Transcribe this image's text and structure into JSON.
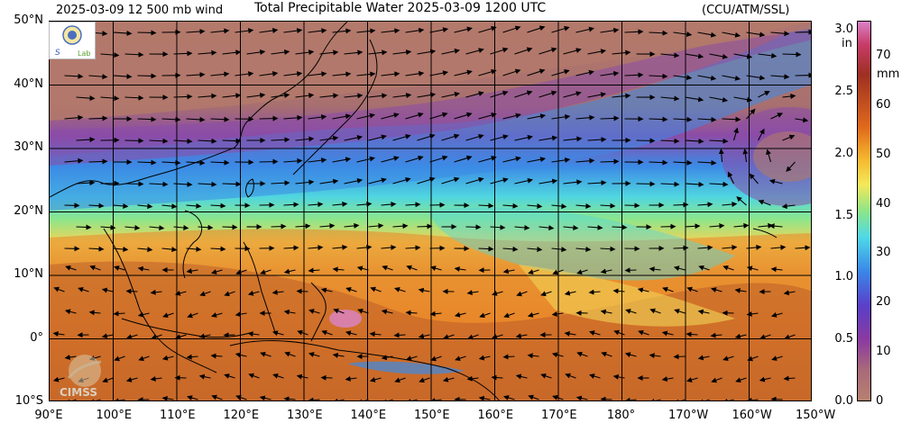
{
  "header": {
    "wind_label": "2025-03-09 12 500 mb wind",
    "title": "Total Precipitable Water  2025-03-09 1200 UTC",
    "credit": "(CCU/ATM/SSL)"
  },
  "map": {
    "lat_labels": [
      "50°N",
      "40°N",
      "30°N",
      "20°N",
      "10°N",
      "0°",
      "10°S"
    ],
    "lon_labels": [
      "90°E",
      "100°E",
      "110°E",
      "120°E",
      "130°E",
      "140°E",
      "150°E",
      "160°E",
      "170°E",
      "180°",
      "170°W",
      "160°W",
      "150°W"
    ],
    "colors": {
      "dry_land": "#b3796b",
      "purple": "#8b4ca8",
      "blue": "#3c8ae6",
      "cyan": "#4fd6e0",
      "green": "#8ee68a",
      "yellow": "#f2d357",
      "orange": "#e8862a",
      "brown": "#b35528"
    }
  },
  "colorbar": {
    "in_ticks": [
      "3.0",
      "2.5",
      "2.0",
      "1.5",
      "1.0",
      "0.5",
      "0.0"
    ],
    "in_unit": "in",
    "mm_ticks": [
      "70",
      "60",
      "50",
      "40",
      "30",
      "20",
      "10",
      "0"
    ],
    "mm_unit": "mm"
  },
  "logos": {
    "lab_logo": "Lab",
    "cimss_logo": "CIMSS"
  }
}
